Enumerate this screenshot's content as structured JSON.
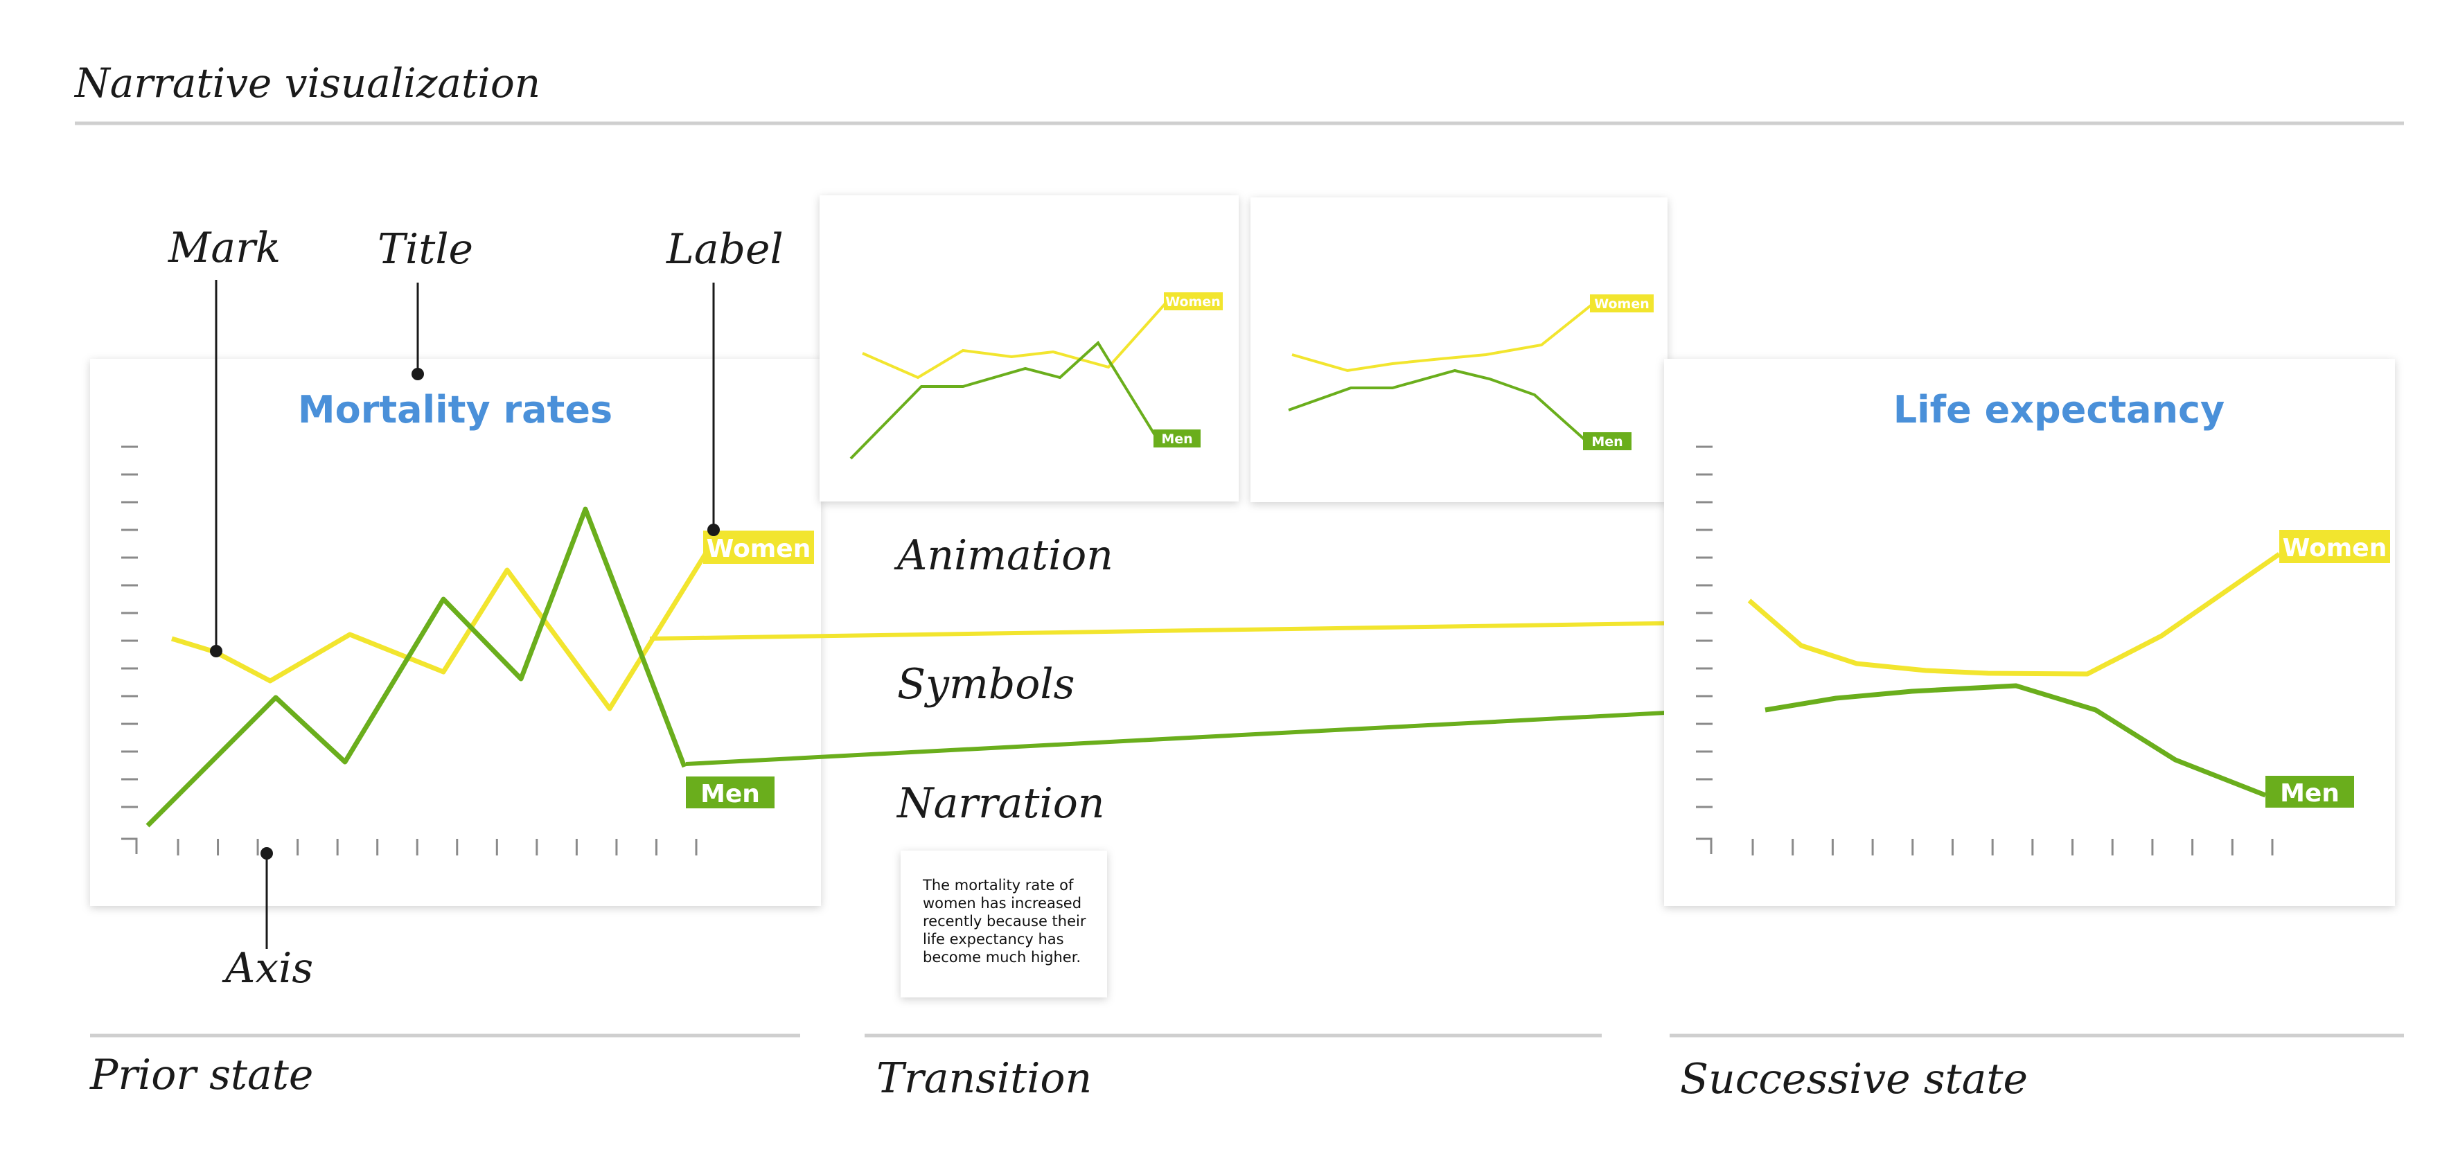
{
  "header": {
    "title": "Narrative visualization"
  },
  "colors": {
    "women": "#f2e52e",
    "men": "#6aae1c",
    "title_blue": "#4a90d9",
    "divider": "#cfcfcf",
    "ink": "#1a1a1a",
    "tick": "#8a8a8a"
  },
  "annotations": {
    "mark": "Mark",
    "title": "Title",
    "label": "Label",
    "axis": "Axis"
  },
  "prior_state": {
    "chart_title": "Mortality rates",
    "women_label": "Women",
    "men_label": "Men"
  },
  "transition": {
    "frame1": {
      "women_label": "Women",
      "men_label": "Men"
    },
    "frame2": {
      "women_label": "Women",
      "men_label": "Men"
    },
    "items": [
      "Animation",
      "Symbols",
      "Narration"
    ],
    "narration_text": [
      "The mortality rate of",
      "women has increased",
      "recently because their",
      "life expectancy has",
      "become much higher."
    ]
  },
  "successive_state": {
    "chart_title": "Life expectancy",
    "women_label": "Women",
    "men_label": "Men"
  },
  "sections": {
    "prior": "Prior state",
    "transition": "Transition",
    "successive": "Successive state"
  }
}
